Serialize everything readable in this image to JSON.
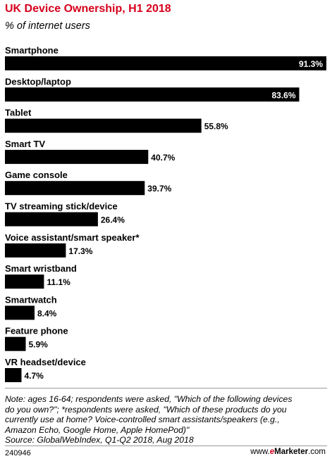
{
  "header": {
    "title": "UK Device Ownership, H1 2018",
    "subtitle": "% of internet users"
  },
  "chart_data": {
    "type": "bar",
    "orientation": "horizontal",
    "title": "UK Device Ownership, H1 2018",
    "subtitle": "% of internet users",
    "categories": [
      "Smartphone",
      "Desktop/laptop",
      "Tablet",
      "Smart TV",
      "Game console",
      "TV streaming stick/device",
      "Voice assistant/smart speaker*",
      "Smart wristband",
      "Smartwatch",
      "Feature phone",
      "VR headset/device"
    ],
    "values": [
      91.3,
      83.6,
      55.8,
      40.7,
      39.7,
      26.4,
      17.3,
      11.1,
      8.4,
      5.9,
      4.7
    ],
    "value_labels": [
      "91.3%",
      "83.6%",
      "55.8%",
      "40.7%",
      "39.7%",
      "26.4%",
      "17.3%",
      "11.1%",
      "8.4%",
      "5.9%",
      "4.7%"
    ],
    "xlim": [
      0,
      91.3
    ],
    "grid": false,
    "legend": "none",
    "colors": {
      "bar": "#000000",
      "label_inside": "#ffffff",
      "label_outside": "#000000"
    }
  },
  "footer": {
    "note_lines": [
      "Note: ages 16-64; respondents were asked, \"Which of the following devices",
      "do you own?\"; *respondents were asked, \"Which of these products do you",
      "currently use at home? Voice-controlled smart assistants/speakers (e.g.,",
      "Amazon Echo, Google Home, Apple HomePod)\"",
      "Source: GlobalWebIndex, Q1-Q2 2018, Aug 2018"
    ],
    "chart_id": "240946",
    "brand_prefix": "www.",
    "brand_e": "e",
    "brand_name": "Marketer",
    "brand_suffix": ".com"
  },
  "colors": {
    "title": "#d6001c",
    "rule": "#999999"
  }
}
